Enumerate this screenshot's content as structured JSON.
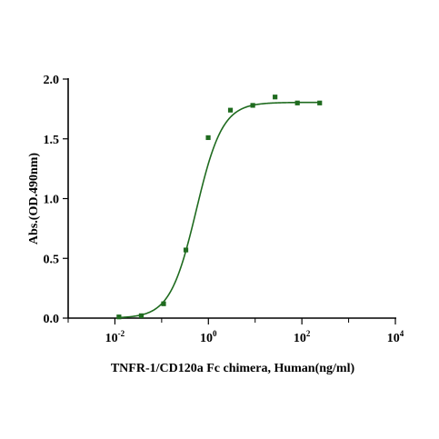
{
  "chart_data": {
    "type": "scatter",
    "title": "",
    "xlabel": "TNFR-1/CD120a Fc chimera, Human(ng/ml)",
    "ylabel": "Abs.(OD.490nm)",
    "x_scale": "log",
    "xlim": [
      0.001,
      10000
    ],
    "ylim": [
      0,
      2.0
    ],
    "x_ticks": [
      {
        "value": 0.01,
        "base": "10",
        "exp": "-2"
      },
      {
        "value": 1,
        "base": "10",
        "exp": "0"
      },
      {
        "value": 100,
        "base": "10",
        "exp": "2"
      },
      {
        "value": 10000,
        "base": "10",
        "exp": "4"
      }
    ],
    "y_ticks": [
      {
        "value": 0.0,
        "label": "0.0"
      },
      {
        "value": 0.5,
        "label": "0.5"
      },
      {
        "value": 1.0,
        "label": "1.0"
      },
      {
        "value": 1.5,
        "label": "1.5"
      },
      {
        "value": 2.0,
        "label": "2.0"
      }
    ],
    "grid": false,
    "legend": "none",
    "colors": {
      "points": "#1f6b1f",
      "curve": "#1f6b1f"
    },
    "series": [
      {
        "x": [
          0.0122,
          0.0366,
          0.11,
          0.33,
          0.99,
          2.96,
          8.9,
          26.7,
          80.1,
          240.3
        ],
        "y": [
          0.01,
          0.02,
          0.12,
          0.57,
          1.51,
          1.74,
          1.78,
          1.85,
          1.8,
          1.8
        ]
      }
    ]
  }
}
